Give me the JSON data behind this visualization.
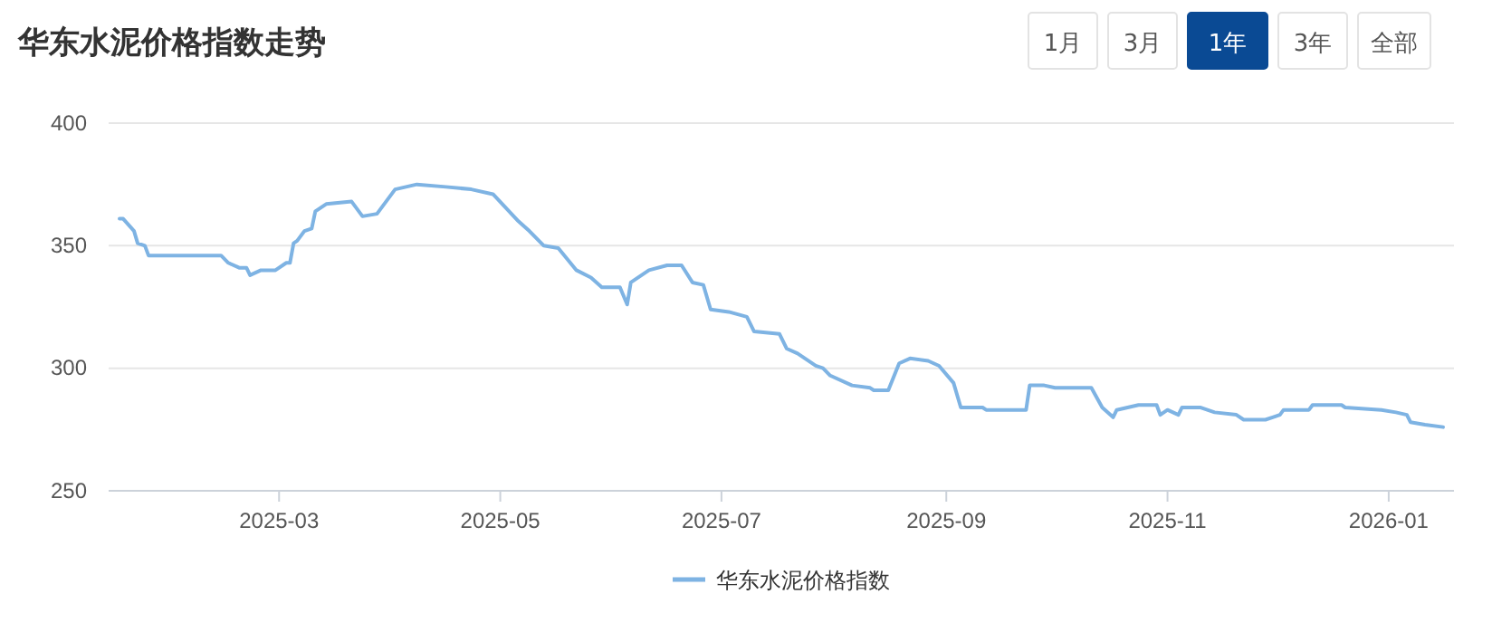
{
  "chart_data": {
    "type": "line",
    "title": "华东水泥价格指数走势",
    "annotations": [
      "1月",
      "3月",
      "1年",
      "3年",
      "全部"
    ],
    "x": [
      "2025-01-16",
      "2025-01-17",
      "2025-01-20",
      "2025-01-21",
      "2025-01-23",
      "2025-01-24",
      "2025-02-13",
      "2025-02-15",
      "2025-02-18",
      "2025-02-20",
      "2025-02-21",
      "2025-02-24",
      "2025-02-28",
      "2025-03-03",
      "2025-03-04",
      "2025-03-05",
      "2025-03-06",
      "2025-03-08",
      "2025-03-10",
      "2025-03-11",
      "2025-03-14",
      "2025-03-21",
      "2025-03-24",
      "2025-03-28",
      "2025-04-02",
      "2025-04-08",
      "2025-04-16",
      "2025-04-23",
      "2025-04-29",
      "2025-05-06",
      "2025-05-09",
      "2025-05-13",
      "2025-05-17",
      "2025-05-22",
      "2025-05-26",
      "2025-05-29",
      "2025-06-03",
      "2025-06-05",
      "2025-06-06",
      "2025-06-11",
      "2025-06-16",
      "2025-06-20",
      "2025-06-23",
      "2025-06-26",
      "2025-06-28",
      "2025-07-03",
      "2025-07-08",
      "2025-07-10",
      "2025-07-17",
      "2025-07-19",
      "2025-07-22",
      "2025-07-27",
      "2025-07-29",
      "2025-07-31",
      "2025-08-06",
      "2025-08-11",
      "2025-08-12",
      "2025-08-16",
      "2025-08-19",
      "2025-08-22",
      "2025-08-27",
      "2025-08-30",
      "2025-09-03",
      "2025-09-05",
      "2025-09-11",
      "2025-09-12",
      "2025-09-23",
      "2025-09-24",
      "2025-09-28",
      "2025-10-01",
      "2025-10-11",
      "2025-10-14",
      "2025-10-17",
      "2025-10-18",
      "2025-10-24",
      "2025-10-29",
      "2025-10-30",
      "2025-11-01",
      "2025-11-04",
      "2025-11-05",
      "2025-11-10",
      "2025-11-14",
      "2025-11-20",
      "2025-11-22",
      "2025-11-28",
      "2025-11-30",
      "2025-12-02",
      "2025-12-03",
      "2025-12-10",
      "2025-12-11",
      "2025-12-19",
      "2025-12-20",
      "2025-12-30",
      "2026-01-03",
      "2026-01-06",
      "2026-01-07",
      "2026-01-11",
      "2026-01-16"
    ],
    "series": [
      {
        "name": "华东水泥价格指数",
        "color": "#7eb3e3",
        "values": [
          361,
          361,
          356,
          351,
          350,
          346,
          346,
          343,
          341,
          341,
          338,
          340,
          340,
          343,
          343,
          351,
          352,
          356,
          357,
          364,
          367,
          368,
          362,
          363,
          373,
          375,
          374,
          373,
          371,
          360,
          356,
          350,
          349,
          340,
          337,
          333,
          333,
          326,
          335,
          340,
          342,
          342,
          335,
          334,
          324,
          323,
          321,
          315,
          314,
          308,
          306,
          301,
          300,
          297,
          293,
          292,
          291,
          291,
          302,
          304,
          303,
          301,
          294,
          284,
          284,
          283,
          283,
          293,
          293,
          292,
          292,
          284,
          280,
          283,
          285,
          285,
          281,
          283,
          281,
          284,
          284,
          282,
          281,
          279,
          279,
          280,
          281,
          283,
          283,
          285,
          285,
          284,
          283,
          282,
          281,
          278,
          277,
          276
        ]
      }
    ],
    "xlim": [
      "2025-01-13",
      "2026-01-19"
    ],
    "xticks": [
      "2025-03",
      "2025-05",
      "2025-07",
      "2025-09",
      "2025-11",
      "2026-01"
    ],
    "ylim": [
      250,
      400
    ],
    "yticks": [
      250,
      300,
      350,
      400
    ],
    "grid": "y",
    "legend": "bottom",
    "marker": "none",
    "line_style": "solid"
  }
}
